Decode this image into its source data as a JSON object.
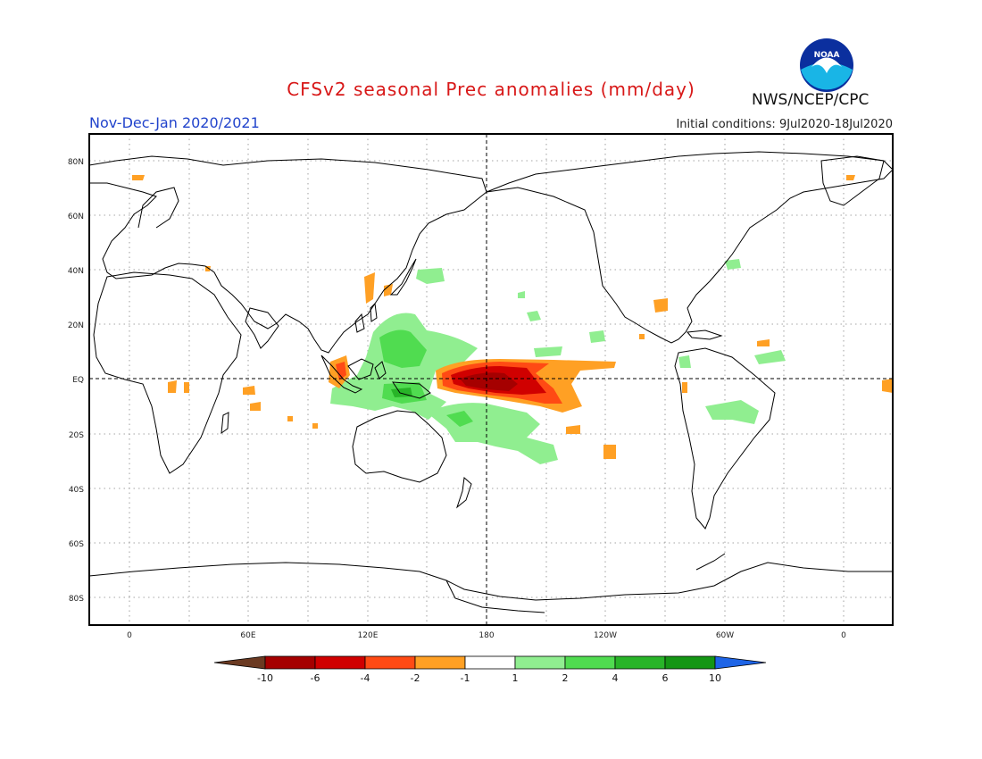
{
  "header": {
    "title": "CFSv2 seasonal Prec anomalies (mm/day)",
    "period": "Nov-Dec-Jan 2020/2021",
    "initial_conditions": "Initial conditions: 9Jul2020-18Jul2020",
    "agency": "NWS/NCEP/CPC",
    "logo_text": "NOAA"
  },
  "map": {
    "lat_labels": [
      "80N",
      "60N",
      "40N",
      "20N",
      "EQ",
      "20S",
      "40S",
      "60S",
      "80S"
    ],
    "lon_labels": [
      "0",
      "60E",
      "120E",
      "180",
      "120W",
      "60W",
      "0"
    ]
  },
  "colorbar": {
    "labels": [
      "-10",
      "-6",
      "-4",
      "-2",
      "-1",
      "1",
      "2",
      "4",
      "6",
      "10"
    ],
    "colors": [
      "#6b3a22",
      "#a50000",
      "#d00000",
      "#ff4a14",
      "#ffa024",
      "#ffffff",
      "#90ee90",
      "#50dc50",
      "#28b428",
      "#149614",
      "#1e64e6"
    ]
  },
  "colors": {
    "title": "#d81818",
    "period": "#2244cc",
    "land_outline": "#000000",
    "grid": "#888888"
  }
}
